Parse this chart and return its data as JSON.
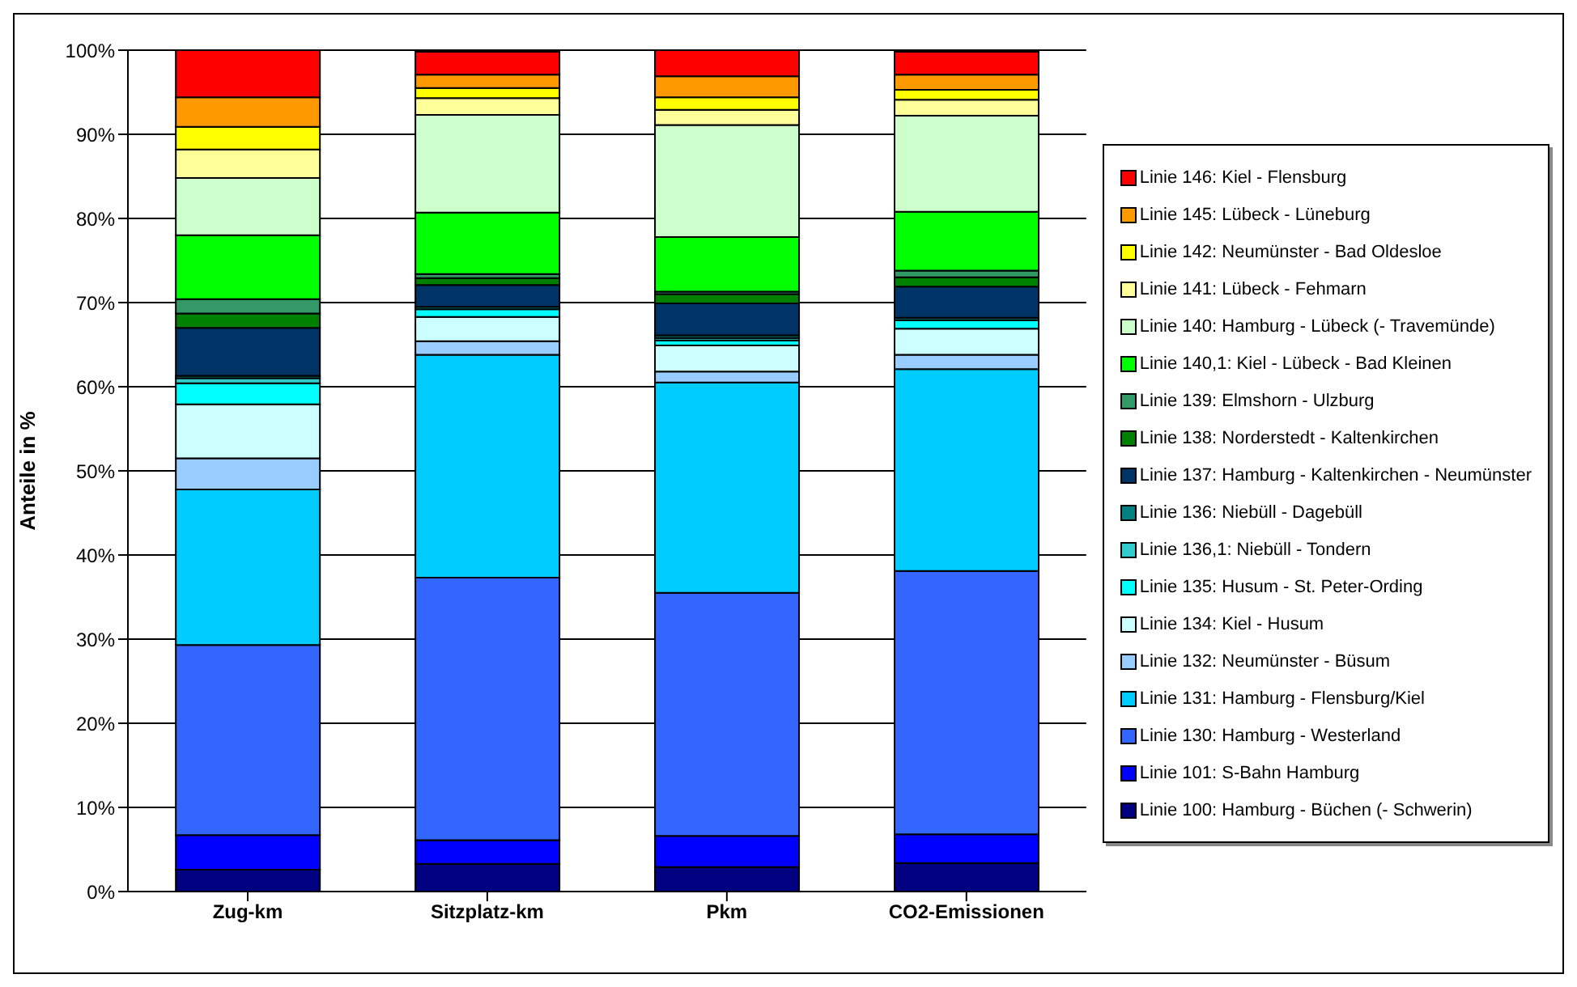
{
  "chart_data": {
    "type": "bar",
    "stacked": true,
    "ylabel": "Anteile in %",
    "categories": [
      "Zug-km",
      "Sitzplatz-km",
      "Pkm",
      "CO2-Emissionen"
    ],
    "series": [
      {
        "name": "Linie 100: Hamburg - Büchen (- Schwerin)",
        "color": "#000080",
        "values": [
          2.6,
          3.3,
          2.9,
          3.4
        ]
      },
      {
        "name": "Linie 101: S-Bahn Hamburg",
        "color": "#0000ff",
        "values": [
          4.1,
          2.8,
          3.7,
          3.4
        ]
      },
      {
        "name": "Linie 130: Hamburg - Westerland",
        "color": "#3366ff",
        "values": [
          22.6,
          31.2,
          28.9,
          31.3
        ]
      },
      {
        "name": "Linie 131: Hamburg - Flensburg/Kiel",
        "color": "#00ccff",
        "values": [
          18.5,
          26.5,
          25.0,
          24.0
        ]
      },
      {
        "name": "Linie 132: Neumünster - Büsum",
        "color": "#99ccff",
        "values": [
          3.7,
          1.6,
          1.3,
          1.7
        ]
      },
      {
        "name": "Linie 134: Kiel - Husum",
        "color": "#ccffff",
        "values": [
          6.4,
          2.9,
          3.1,
          3.1
        ]
      },
      {
        "name": "Linie 135: Husum - St. Peter-Ording",
        "color": "#00ffff",
        "values": [
          2.5,
          0.9,
          0.6,
          1.0
        ]
      },
      {
        "name": "Linie 136,1: Niebüll - Tondern",
        "color": "#33cccc",
        "values": [
          0.6,
          null,
          0.3,
          null
        ]
      },
      {
        "name": "Linie 136: Niebüll - Dagebüll",
        "color": "#008080",
        "values": [
          0.3,
          0.3,
          0.3,
          0.3
        ]
      },
      {
        "name": "Linie 137: Hamburg - Kaltenkirchen - Neumünster",
        "color": "#003366",
        "values": [
          5.7,
          2.6,
          3.8,
          3.7
        ]
      },
      {
        "name": "Linie 138: Norderstedt - Kaltenkirchen",
        "color": "#008000",
        "values": [
          1.7,
          0.8,
          1.1,
          1.1
        ]
      },
      {
        "name": "Linie 139: Elmshorn - Ulzburg",
        "color": "#339966",
        "values": [
          1.7,
          0.5,
          0.3,
          0.8
        ]
      },
      {
        "name": "Linie 140,1: Kiel - Lübeck - Bad Kleinen",
        "color": "#00ff00",
        "values": [
          7.6,
          7.3,
          6.5,
          7.0
        ]
      },
      {
        "name": "Linie 140: Hamburg - Lübeck (- Travemünde)",
        "color": "#ccffcc",
        "values": [
          6.8,
          11.6,
          13.3,
          11.4
        ]
      },
      {
        "name": "Linie 141: Lübeck - Fehmarn",
        "color": "#ffff99",
        "values": [
          3.4,
          2.0,
          1.8,
          1.9
        ]
      },
      {
        "name": "Linie 142: Neumünster - Bad Oldesloe",
        "color": "#ffff00",
        "values": [
          2.7,
          1.2,
          1.5,
          1.2
        ]
      },
      {
        "name": "Linie 145: Lübeck - Lüneburg",
        "color": "#ff9900",
        "values": [
          3.5,
          1.6,
          2.5,
          1.8
        ]
      },
      {
        "name": "Linie 146: Kiel - Flensburg",
        "color": "#ff0000",
        "values": [
          5.6,
          2.7,
          3.1,
          2.7
        ]
      }
    ],
    "ylim": [
      0,
      100
    ],
    "yticks": [
      {
        "value": 0,
        "label": "0%"
      },
      {
        "value": 10,
        "label": "10%"
      },
      {
        "value": 20,
        "label": "20%"
      },
      {
        "value": 30,
        "label": "30%"
      },
      {
        "value": 40,
        "label": "40%"
      },
      {
        "value": 50,
        "label": "50%"
      },
      {
        "value": 60,
        "label": "60%"
      },
      {
        "value": 70,
        "label": "70%"
      },
      {
        "value": 80,
        "label": "80%"
      },
      {
        "value": 90,
        "label": "90%"
      },
      {
        "value": 100,
        "label": "100%"
      }
    ],
    "grid": "y",
    "legend": "right"
  }
}
